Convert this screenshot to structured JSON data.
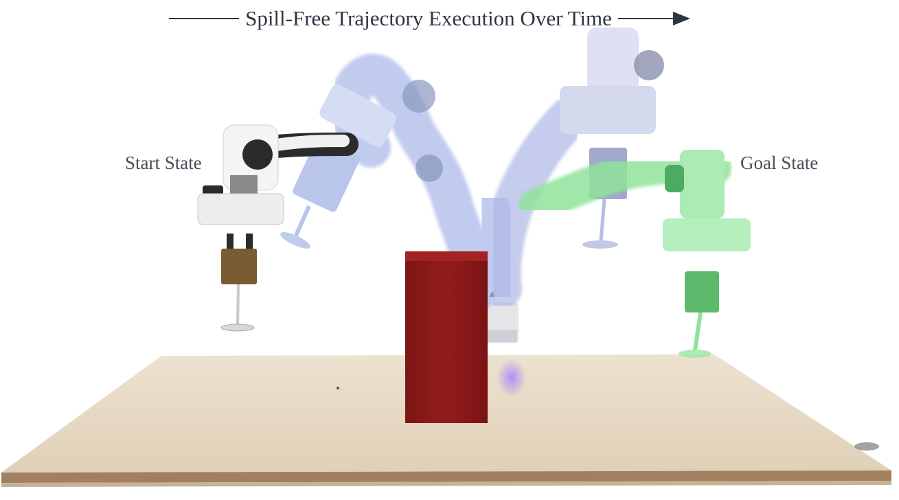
{
  "figure": {
    "title": "Spill-Free Trajectory Execution Over Time",
    "start_label": "Start State",
    "goal_label": "Goal State"
  },
  "colors": {
    "arrow": "#2f3442",
    "table_top": "#e7d9c4",
    "table_edge": "#a0805f",
    "obstacle_box": "#8a1a1a",
    "robot_start": "#f2f2f2",
    "robot_dark": "#2b2b2b",
    "ghost_blue": "#8fa6e0",
    "ghost_green": "#7fdc8a",
    "liquid": "#6b4a1c"
  },
  "scene": {
    "objects": [
      "robot-arm-start",
      "robot-arm-intermediate-ghosts",
      "robot-arm-goal",
      "red-obstacle-box",
      "table",
      "wine-glasses"
    ]
  }
}
